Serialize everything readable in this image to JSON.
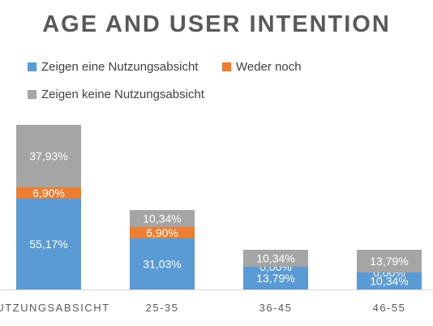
{
  "chart_data": {
    "type": "bar",
    "stacked": true,
    "title": "AGE AND USER INTENTION",
    "categories": [
      "NUTZUNGSABSICHT",
      "25-35",
      "36-45",
      "46-55"
    ],
    "series": [
      {
        "name": "Zeigen eine Nutzungsabsicht",
        "color": "#5b9bd5",
        "values": [
          55.17,
          31.03,
          13.79,
          10.34
        ],
        "labels": [
          "55,17%",
          "31,03%",
          "13,79%",
          "10,34%"
        ]
      },
      {
        "name": "Weder noch",
        "color": "#ed7d31",
        "values": [
          6.9,
          6.9,
          0.0,
          0.0
        ],
        "labels": [
          "6,90%",
          "6,90%",
          "0,00%",
          "0,00%"
        ]
      },
      {
        "name": "Zeigen keine Nutzungsabsicht",
        "color": "#a5a5a5",
        "values": [
          37.93,
          10.34,
          10.34,
          13.79
        ],
        "labels": [
          "37,93%",
          "10,34%",
          "10,34%",
          "13,79%"
        ]
      }
    ],
    "legend_position": "top-left",
    "grid": false
  }
}
